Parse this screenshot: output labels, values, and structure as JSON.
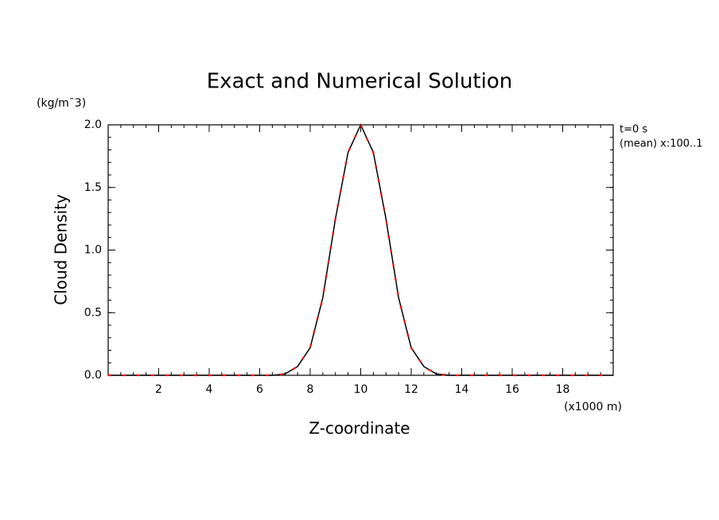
{
  "chart_data": {
    "type": "line",
    "title": "Exact and Numerical Solution",
    "y_unit": "(kg/m¯3)",
    "ylabel": "Cloud Density",
    "xlabel": "Z-coordinate",
    "x_unit": "(x1000 m)",
    "annotations": [
      "t=0 s",
      "(mean) x:100..1"
    ],
    "x": [
      0,
      0.5,
      1,
      1.5,
      2,
      2.5,
      3,
      3.5,
      4,
      4.5,
      5,
      5.5,
      6,
      6.5,
      7,
      7.5,
      8,
      8.5,
      9,
      9.5,
      10,
      10.5,
      11,
      11.5,
      12,
      12.5,
      13,
      13.5,
      14,
      14.5,
      15,
      15.5,
      16,
      16.5,
      17,
      17.5,
      18,
      18.5,
      19,
      19.5,
      20
    ],
    "series": [
      {
        "color": "#000000",
        "style": "solid",
        "values": [
          0,
          0,
          0,
          0,
          0,
          0,
          0,
          0,
          0,
          0,
          0,
          0,
          0,
          0,
          0.01,
          0.07,
          0.22,
          0.62,
          1.25,
          1.78,
          2.0,
          1.78,
          1.25,
          0.62,
          0.22,
          0.07,
          0.01,
          0,
          0,
          0,
          0,
          0,
          0,
          0,
          0,
          0,
          0,
          0,
          0,
          0,
          0
        ]
      },
      {
        "color": "#ff0000",
        "style": "dashed",
        "values": [
          0,
          0,
          0,
          0,
          0,
          0,
          0,
          0,
          0,
          0,
          0,
          0,
          0,
          0,
          0.01,
          0.07,
          0.22,
          0.62,
          1.25,
          1.78,
          2.0,
          1.78,
          1.25,
          0.62,
          0.22,
          0.07,
          0.01,
          0,
          0,
          0,
          0,
          0,
          0,
          0,
          0,
          0,
          0,
          0,
          0,
          0,
          0
        ]
      }
    ],
    "xlim": [
      0,
      20
    ],
    "xticks": [
      2,
      4,
      6,
      8,
      10,
      12,
      14,
      16,
      18
    ],
    "ylim": [
      0,
      2
    ],
    "yticks": [
      {
        "value": 0,
        "label": "0.0"
      },
      0.5,
      {
        "value": 1,
        "label": "1.0"
      },
      1.5,
      {
        "value": 2,
        "label": "2.0"
      }
    ],
    "grid": false
  }
}
